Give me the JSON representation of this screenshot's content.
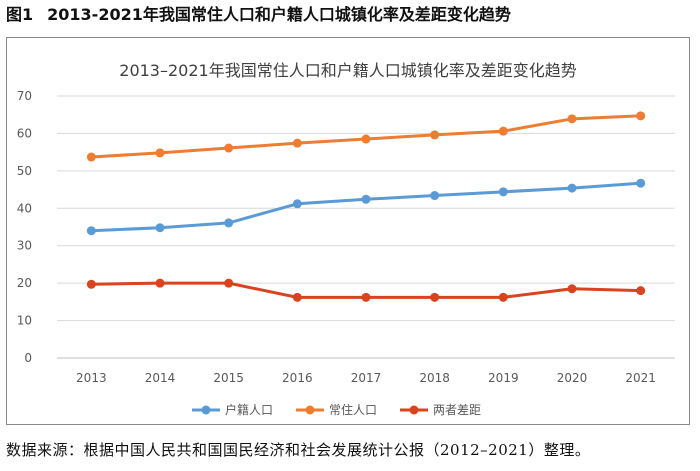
{
  "figure": {
    "label": "图1",
    "caption": "2013-2021年我国常住人口和户籍人口城镇化率及差距变化趋势",
    "source_note": "数据来源：根据中国人民共和国国民经济和社会发展统计公报（2012–2021）整理。"
  },
  "chart_data": {
    "type": "line",
    "title": "2013–2021年我国常住人口和户籍人口城镇化率及差距变化趋势",
    "x": [
      "2013",
      "2014",
      "2015",
      "2016",
      "2017",
      "2018",
      "2019",
      "2020",
      "2021"
    ],
    "xlabel": "",
    "ylabel": "",
    "ylim": [
      0,
      70
    ],
    "yticks": [
      "0",
      "10",
      "20",
      "30",
      "40",
      "50",
      "60",
      "70"
    ],
    "grid": true,
    "legend_position": "bottom",
    "series": [
      {
        "name": "户籍人口",
        "color": "#5b9bd5",
        "values": [
          34.0,
          34.8,
          36.1,
          41.2,
          42.4,
          43.4,
          44.4,
          45.4,
          46.7
        ]
      },
      {
        "name": "常住人口",
        "color": "#ed7d31",
        "values": [
          53.7,
          54.8,
          56.1,
          57.4,
          58.5,
          59.6,
          60.6,
          63.9,
          64.7
        ]
      },
      {
        "name": "两者差距",
        "color": "#d9431e",
        "values": [
          19.7,
          20.0,
          20.0,
          16.2,
          16.2,
          16.2,
          16.2,
          18.5,
          18.0
        ]
      }
    ]
  }
}
